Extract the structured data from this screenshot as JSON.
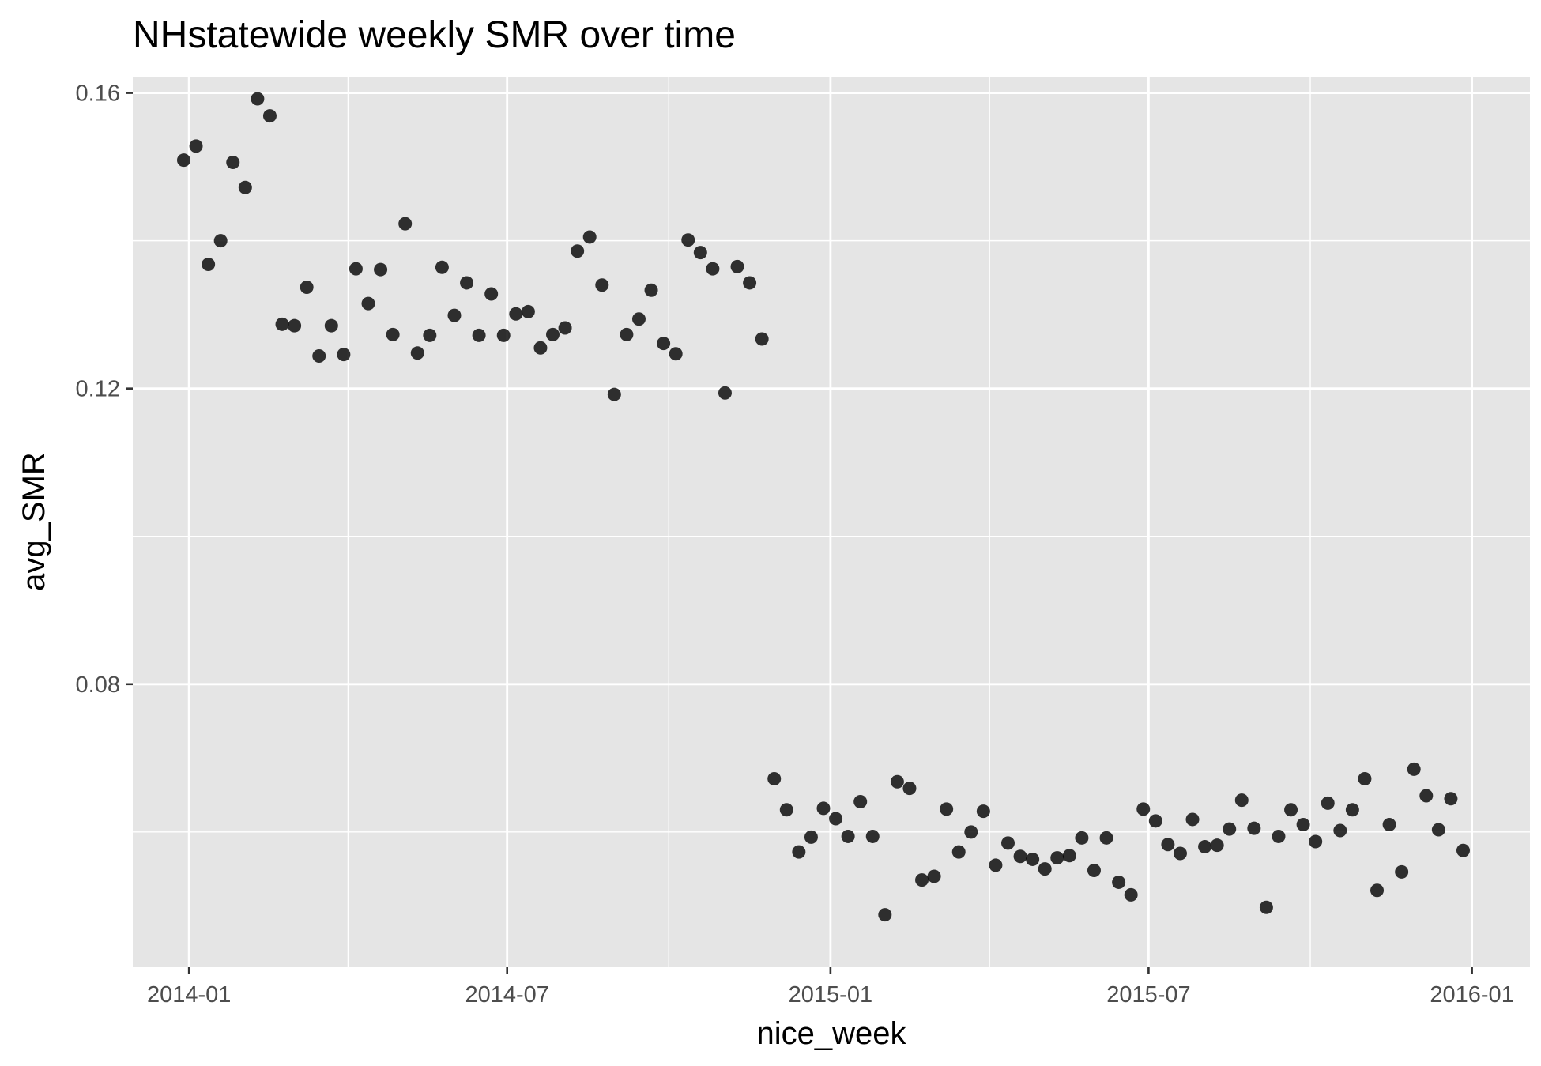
{
  "chart_data": {
    "type": "scatter",
    "title": "NHstatewide weekly SMR over time",
    "xlabel": "nice_week",
    "ylabel": "avg_SMR",
    "x_ticks": [
      "2014-01",
      "2014-07",
      "2015-01",
      "2015-07",
      "2016-01"
    ],
    "y_ticks": [
      "0.08",
      "0.12",
      "0.16"
    ],
    "x_range": [
      "2013-11-30",
      "2016-02-03"
    ],
    "y_range": [
      0.0417,
      0.1622
    ],
    "theme": "ggplot2 gray",
    "grid": true,
    "point_color": "#000000",
    "point_opacity": 0.8,
    "panel_background": "#e5e5e5",
    "series": [
      {
        "x": [
          "2013-12-29",
          "2014-01-05",
          "2014-01-12",
          "2014-01-19",
          "2014-01-26",
          "2014-02-02",
          "2014-02-09",
          "2014-02-16",
          "2014-02-23",
          "2014-03-02",
          "2014-03-09",
          "2014-03-16",
          "2014-03-23",
          "2014-03-30",
          "2014-04-06",
          "2014-04-13",
          "2014-04-20",
          "2014-04-27",
          "2014-05-04",
          "2014-05-11",
          "2014-05-18",
          "2014-05-25",
          "2014-06-01",
          "2014-06-08",
          "2014-06-15",
          "2014-06-22",
          "2014-06-29",
          "2014-07-06",
          "2014-07-13",
          "2014-07-20",
          "2014-07-27",
          "2014-08-03",
          "2014-08-10",
          "2014-08-17",
          "2014-08-24",
          "2014-08-31",
          "2014-09-07",
          "2014-09-14",
          "2014-09-21",
          "2014-09-28",
          "2014-10-05",
          "2014-10-12",
          "2014-10-19",
          "2014-10-26",
          "2014-11-02",
          "2014-11-09",
          "2014-11-16",
          "2014-11-23",
          "2014-11-30",
          "2014-12-07",
          "2014-12-14",
          "2014-12-21",
          "2014-12-28",
          "2015-01-04",
          "2015-01-11",
          "2015-01-18",
          "2015-01-25",
          "2015-02-01",
          "2015-02-08",
          "2015-02-15",
          "2015-02-22",
          "2015-03-01",
          "2015-03-08",
          "2015-03-15",
          "2015-03-22",
          "2015-03-29",
          "2015-04-05",
          "2015-04-12",
          "2015-04-19",
          "2015-04-26",
          "2015-05-03",
          "2015-05-10",
          "2015-05-17",
          "2015-05-24",
          "2015-05-31",
          "2015-06-07",
          "2015-06-14",
          "2015-06-21",
          "2015-06-28",
          "2015-07-05",
          "2015-07-12",
          "2015-07-19",
          "2015-07-26",
          "2015-08-02",
          "2015-08-09",
          "2015-08-16",
          "2015-08-23",
          "2015-08-30",
          "2015-09-06",
          "2015-09-13",
          "2015-09-20",
          "2015-09-27",
          "2015-10-04",
          "2015-10-11",
          "2015-10-18",
          "2015-10-25",
          "2015-11-01",
          "2015-11-08",
          "2015-11-15",
          "2015-11-22",
          "2015-11-29",
          "2015-12-06",
          "2015-12-13",
          "2015-12-20",
          "2015-12-27"
        ],
        "y": [
          0.1509,
          0.1528,
          0.1368,
          0.14,
          0.1506,
          0.1472,
          0.1592,
          0.1569,
          0.1287,
          0.1285,
          0.1337,
          0.1244,
          0.1285,
          0.1246,
          0.1362,
          0.1315,
          0.1361,
          0.1273,
          0.1423,
          0.1248,
          0.1272,
          0.1364,
          0.1299,
          0.1343,
          0.1272,
          0.1328,
          0.1272,
          0.1301,
          0.1304,
          0.1255,
          0.1273,
          0.1282,
          0.1386,
          0.1405,
          0.134,
          0.1192,
          0.1273,
          0.1294,
          0.1333,
          0.1261,
          0.1247,
          0.1401,
          0.1384,
          0.1362,
          0.1194,
          0.1365,
          0.1343,
          0.1267,
          0.0672,
          0.063,
          0.0573,
          0.0593,
          0.0632,
          0.0618,
          0.0594,
          0.0641,
          0.0594,
          0.0488,
          0.0668,
          0.0659,
          0.0535,
          0.054,
          0.0631,
          0.0573,
          0.06,
          0.0628,
          0.0555,
          0.0585,
          0.0567,
          0.0563,
          0.055,
          0.0565,
          0.0568,
          0.0592,
          0.0548,
          0.0592,
          0.0532,
          0.0515,
          0.0631,
          0.0615,
          0.0583,
          0.0571,
          0.0617,
          0.058,
          0.0582,
          0.0604,
          0.0643,
          0.0605,
          0.0498,
          0.0594,
          0.063,
          0.061,
          0.0587,
          0.0639,
          0.0602,
          0.063,
          0.0672,
          0.0521,
          0.061,
          0.0546,
          0.0685,
          0.0649,
          0.0603,
          0.0645,
          0.0575
        ]
      }
    ]
  }
}
